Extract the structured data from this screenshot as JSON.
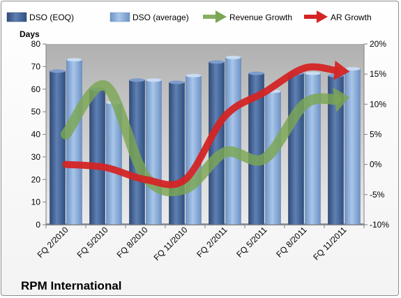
{
  "chart_data": {
    "type": "bar",
    "title": "RPM International",
    "ylabel": "Days",
    "categories": [
      "FQ 2/2010",
      "FQ 5/2010",
      "FQ 8/2010",
      "FQ 11/2010",
      "FQ 2/2011",
      "FQ 5/2011",
      "FQ 8/2011",
      "FQ 11/2011"
    ],
    "series": [
      {
        "name": "DSO (EOQ)",
        "type": "bar",
        "axis": "left",
        "color": "#4a6796",
        "values": [
          68,
          60,
          64,
          63,
          72,
          67,
          67,
          66
        ]
      },
      {
        "name": "DSO (average)",
        "type": "bar",
        "axis": "left",
        "color": "#8fb0db",
        "values": [
          73,
          54,
          64,
          66,
          74,
          59,
          67,
          69
        ]
      },
      {
        "name": "Revenue Growth",
        "type": "line",
        "axis": "right",
        "color": "#7ba653",
        "values": [
          5.0,
          13.0,
          -2.0,
          -4.0,
          2.0,
          1.0,
          10.0,
          11.0
        ]
      },
      {
        "name": "AR Growth",
        "type": "line",
        "axis": "right",
        "color": "#d42424",
        "values": [
          0.0,
          -0.5,
          -2.5,
          -2.5,
          8.0,
          12.0,
          16.0,
          15.5
        ]
      }
    ],
    "ylim": [
      0,
      80
    ],
    "yticks": [
      0,
      10,
      20,
      30,
      40,
      50,
      60,
      70,
      80
    ],
    "y2lim": [
      -10,
      20
    ],
    "y2ticks": [
      "-10%",
      "-5%",
      "0%",
      "5%",
      "10%",
      "15%",
      "20%"
    ],
    "legend": "top",
    "grid": false
  }
}
